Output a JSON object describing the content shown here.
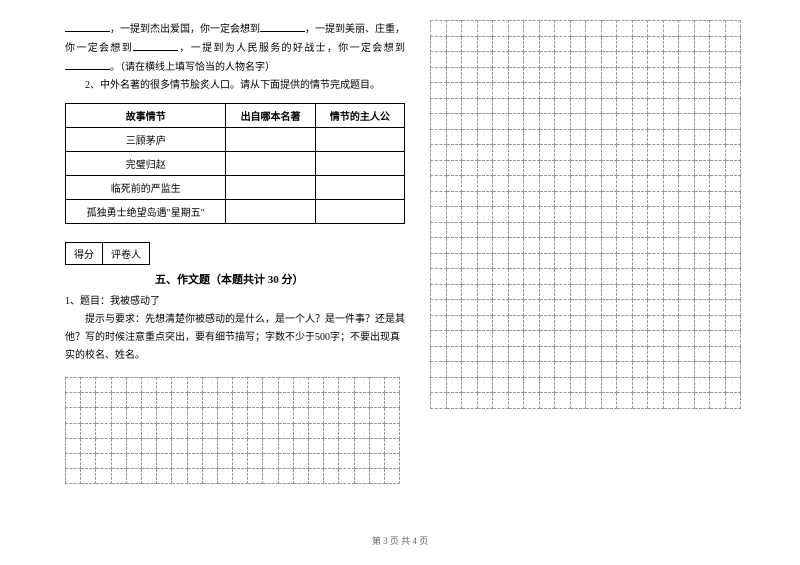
{
  "intro": {
    "t1": "，一提到杰出爱国，你一定会想到",
    "t2": "，一提到美丽、庄重，你一定会想到",
    "t3": "，一提到为人民服务的好战士，你一定会想到",
    "t4": "。（请在横线上填写恰当的人物名字）",
    "line2": "2、中外名著的很多情节脍炙人口。请从下面提供的情节完成题目。"
  },
  "table": {
    "h1": "故事情节",
    "h2": "出自哪本名著",
    "h3": "情节的主人公",
    "r1": "三顾茅庐",
    "r2": "完璧归赵",
    "r3": "临死前的严监生",
    "r4": "孤独勇士绝望岛遇\"星期五\""
  },
  "score": {
    "c1": "得分",
    "c2": "评卷人"
  },
  "section5": {
    "title": "五、作文题（本题共计 30 分）",
    "q1": "1、题目：我被感动了",
    "q2": "提示与要求：先想清楚你被感动的是什么，是一个人？是一件事？还是其他？写的时候注意重点突出，要有细节描写；字数不少于500字；不要出现真实的校名、姓名。"
  },
  "grid": {
    "left_rows": 7,
    "left_cols": 22,
    "right_rows": 25,
    "right_cols": 20
  },
  "footer": "第 3 页 共 4 页"
}
